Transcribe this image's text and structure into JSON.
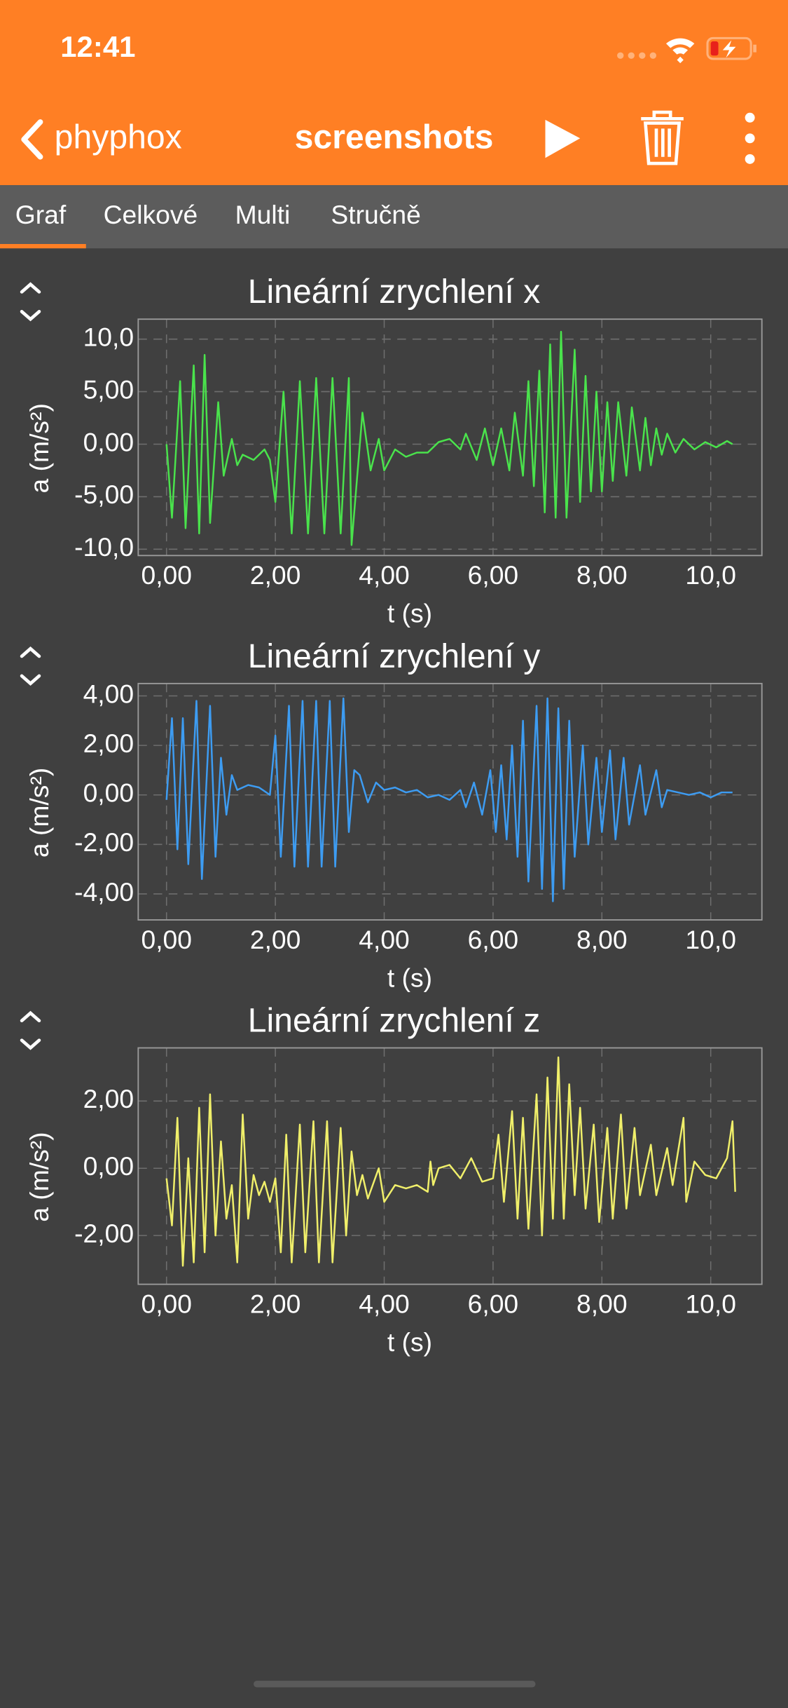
{
  "ui": {
    "status_time": "12:41",
    "back_label": "phyphox",
    "title": "screenshots",
    "tabs": [
      "Graf",
      "Celkové",
      "Multi",
      "Stručně"
    ]
  },
  "chart_data": [
    {
      "type": "line",
      "title": "Lineární zrychlení x",
      "xlabel": "t (s)",
      "ylabel": "a (m/s²)",
      "color": "#4ae34c",
      "grid": true,
      "xlim": [
        -0.52,
        10.94
      ],
      "ylim": [
        -10.6,
        11.9
      ],
      "xticks": [
        {
          "value": 0,
          "label": "0,00"
        },
        {
          "value": 2,
          "label": "2,00"
        },
        {
          "value": 4,
          "label": "4,00"
        },
        {
          "value": 6,
          "label": "6,00"
        },
        {
          "value": 8,
          "label": "8,00"
        },
        {
          "value": 10,
          "label": "10,0"
        }
      ],
      "yticks": [
        {
          "value": 10,
          "label": "10,0"
        },
        {
          "value": 5,
          "label": "5,00"
        },
        {
          "value": 0,
          "label": "0,00"
        },
        {
          "value": -5,
          "label": "-5,00"
        },
        {
          "value": -10,
          "label": "-10,0"
        }
      ],
      "x": [
        0,
        0.1,
        0.25,
        0.35,
        0.5,
        0.6,
        0.7,
        0.8,
        0.95,
        1.05,
        1.2,
        1.3,
        1.4,
        1.6,
        1.8,
        1.9,
        2.0,
        2.15,
        2.3,
        2.45,
        2.6,
        2.75,
        2.9,
        3.05,
        3.2,
        3.35,
        3.4,
        3.6,
        3.75,
        3.9,
        4.0,
        4.2,
        4.4,
        4.6,
        4.8,
        5.0,
        5.2,
        5.4,
        5.5,
        5.7,
        5.85,
        6.0,
        6.15,
        6.3,
        6.4,
        6.55,
        6.65,
        6.75,
        6.85,
        6.95,
        7.05,
        7.15,
        7.25,
        7.35,
        7.5,
        7.6,
        7.7,
        7.8,
        7.9,
        8.0,
        8.1,
        8.2,
        8.3,
        8.45,
        8.55,
        8.7,
        8.8,
        8.9,
        9.0,
        9.1,
        9.2,
        9.35,
        9.5,
        9.7,
        9.9,
        10.1,
        10.3,
        10.4
      ],
      "values": [
        0,
        -7,
        6,
        -8,
        7.5,
        -8.5,
        8.5,
        -7.5,
        4,
        -3,
        0.5,
        -2,
        -1,
        -1.5,
        -0.5,
        -1.5,
        -5.5,
        5,
        -8.5,
        6,
        -8.5,
        6.3,
        -8.5,
        6.3,
        -8.5,
        6.3,
        -9.6,
        3,
        -2.5,
        0.5,
        -2.5,
        -0.5,
        -1.2,
        -0.8,
        -0.8,
        0.2,
        0.5,
        -0.5,
        1,
        -1.5,
        1.5,
        -2,
        1.5,
        -2.5,
        3,
        -3,
        6,
        -4,
        7,
        -6.5,
        9.5,
        -7,
        10.7,
        -7,
        9,
        -5.5,
        6.5,
        -4.5,
        5,
        -4.5,
        4,
        -3.5,
        4,
        -3,
        3.5,
        -2.5,
        2.5,
        -2,
        1.5,
        -1,
        1,
        -0.8,
        0.5,
        -0.5,
        0.2,
        -0.3,
        0.3,
        0
      ]
    },
    {
      "type": "line",
      "title": "Lineární zrychlení y",
      "xlabel": "t (s)",
      "ylabel": "a (m/s²)",
      "color": "#3d9cf2",
      "grid": true,
      "xlim": [
        -0.52,
        10.94
      ],
      "ylim": [
        -5.05,
        4.5
      ],
      "xticks": [
        {
          "value": 0,
          "label": "0,00"
        },
        {
          "value": 2,
          "label": "2,00"
        },
        {
          "value": 4,
          "label": "4,00"
        },
        {
          "value": 6,
          "label": "6,00"
        },
        {
          "value": 8,
          "label": "8,00"
        },
        {
          "value": 10,
          "label": "10,0"
        }
      ],
      "yticks": [
        {
          "value": 4,
          "label": "4,00"
        },
        {
          "value": 2,
          "label": "2,00"
        },
        {
          "value": 0,
          "label": "0,00"
        },
        {
          "value": -2,
          "label": "-2,00"
        },
        {
          "value": -4,
          "label": "-4,00"
        }
      ],
      "x": [
        0,
        0.1,
        0.2,
        0.3,
        0.4,
        0.55,
        0.65,
        0.8,
        0.9,
        1.0,
        1.1,
        1.2,
        1.3,
        1.5,
        1.7,
        1.9,
        2.0,
        2.1,
        2.25,
        2.35,
        2.5,
        2.6,
        2.75,
        2.85,
        3.0,
        3.1,
        3.25,
        3.35,
        3.45,
        3.55,
        3.7,
        3.85,
        4.0,
        4.2,
        4.4,
        4.6,
        4.8,
        5.0,
        5.2,
        5.4,
        5.5,
        5.65,
        5.8,
        5.95,
        6.05,
        6.15,
        6.25,
        6.35,
        6.45,
        6.55,
        6.65,
        6.8,
        6.9,
        7.0,
        7.1,
        7.2,
        7.3,
        7.4,
        7.5,
        7.65,
        7.75,
        7.9,
        8.0,
        8.15,
        8.25,
        8.4,
        8.5,
        8.7,
        8.8,
        9.0,
        9.1,
        9.2,
        9.4,
        9.6,
        9.8,
        10.0,
        10.2,
        10.4
      ],
      "values": [
        -0.2,
        3.1,
        -2.2,
        3.1,
        -2.8,
        3.8,
        -3.4,
        3.6,
        -2.5,
        1.5,
        -0.8,
        0.8,
        0.2,
        0.4,
        0.3,
        0,
        2.4,
        -2.5,
        3.6,
        -2.9,
        3.8,
        -2.9,
        3.8,
        -2.9,
        3.8,
        -2.9,
        3.9,
        -1.5,
        1,
        0.8,
        -0.3,
        0.5,
        0.2,
        0.3,
        0.1,
        0.2,
        -0.1,
        0,
        -0.2,
        0.2,
        -0.5,
        0.5,
        -0.8,
        1,
        -1.5,
        1.2,
        -1.8,
        2,
        -2.5,
        3,
        -3.5,
        3.6,
        -3.8,
        3.9,
        -4.3,
        3.5,
        -3.8,
        3,
        -2.5,
        2,
        -2,
        1.5,
        -1.5,
        1.8,
        -1.8,
        1.5,
        -1.2,
        1.2,
        -0.8,
        1,
        -0.5,
        0.2,
        0.1,
        0,
        0.1,
        -0.1,
        0.1,
        0.1
      ]
    },
    {
      "type": "line",
      "title": "Lineární zrychlení z",
      "xlabel": "t (s)",
      "ylabel": "a (m/s²)",
      "color": "#f0ef6a",
      "grid": true,
      "xlim": [
        -0.52,
        10.94
      ],
      "ylim": [
        -3.45,
        3.58
      ],
      "xticks": [
        {
          "value": 0,
          "label": "0,00"
        },
        {
          "value": 2,
          "label": "2,00"
        },
        {
          "value": 4,
          "label": "4,00"
        },
        {
          "value": 6,
          "label": "6,00"
        },
        {
          "value": 8,
          "label": "8,00"
        },
        {
          "value": 10,
          "label": "10,0"
        }
      ],
      "yticks": [
        {
          "value": 2,
          "label": "2,00"
        },
        {
          "value": 0,
          "label": "0,00"
        },
        {
          "value": -2,
          "label": "-2,00"
        }
      ],
      "x": [
        0,
        0.1,
        0.2,
        0.3,
        0.4,
        0.5,
        0.6,
        0.7,
        0.8,
        0.9,
        1.0,
        1.1,
        1.2,
        1.3,
        1.4,
        1.5,
        1.6,
        1.7,
        1.8,
        1.9,
        2.0,
        2.1,
        2.2,
        2.3,
        2.45,
        2.55,
        2.7,
        2.8,
        2.95,
        3.05,
        3.2,
        3.3,
        3.4,
        3.5,
        3.6,
        3.7,
        3.9,
        4.0,
        4.2,
        4.4,
        4.6,
        4.8,
        4.85,
        4.9,
        5.0,
        5.2,
        5.4,
        5.6,
        5.8,
        6.0,
        6.1,
        6.2,
        6.35,
        6.45,
        6.55,
        6.65,
        6.8,
        6.9,
        7.0,
        7.1,
        7.2,
        7.3,
        7.4,
        7.5,
        7.6,
        7.7,
        7.85,
        7.95,
        8.1,
        8.2,
        8.35,
        8.45,
        8.6,
        8.7,
        8.9,
        9.0,
        9.2,
        9.3,
        9.5,
        9.55,
        9.7,
        9.9,
        10.1,
        10.3,
        10.4,
        10.45
      ],
      "values": [
        -0.3,
        -1.7,
        1.5,
        -2.9,
        0.3,
        -2.8,
        1.8,
        -2.5,
        2.2,
        -2,
        0.8,
        -1.5,
        -0.5,
        -2.8,
        1.6,
        -1.5,
        -0.2,
        -0.8,
        -0.4,
        -1,
        -0.3,
        -2.5,
        1,
        -2.8,
        1.3,
        -2.5,
        1.4,
        -2.8,
        1.4,
        -2.8,
        1.2,
        -2,
        0.5,
        -0.8,
        -0.2,
        -0.9,
        0,
        -1,
        -0.5,
        -0.6,
        -0.5,
        -0.7,
        0.2,
        -0.5,
        0,
        0.1,
        -0.3,
        0.3,
        -0.4,
        -0.3,
        1,
        -1,
        1.7,
        -1.5,
        1.5,
        -1.8,
        2.2,
        -2,
        2.7,
        -1.5,
        3.3,
        -1.5,
        2.5,
        -0.8,
        1.8,
        -1.2,
        1.3,
        -1.6,
        1.2,
        -1.5,
        1.6,
        -1.2,
        1.2,
        -0.8,
        0.7,
        -0.8,
        0.6,
        -0.5,
        1.5,
        -1,
        0.2,
        -0.2,
        -0.3,
        0.3,
        1.4,
        -0.7
      ]
    }
  ]
}
